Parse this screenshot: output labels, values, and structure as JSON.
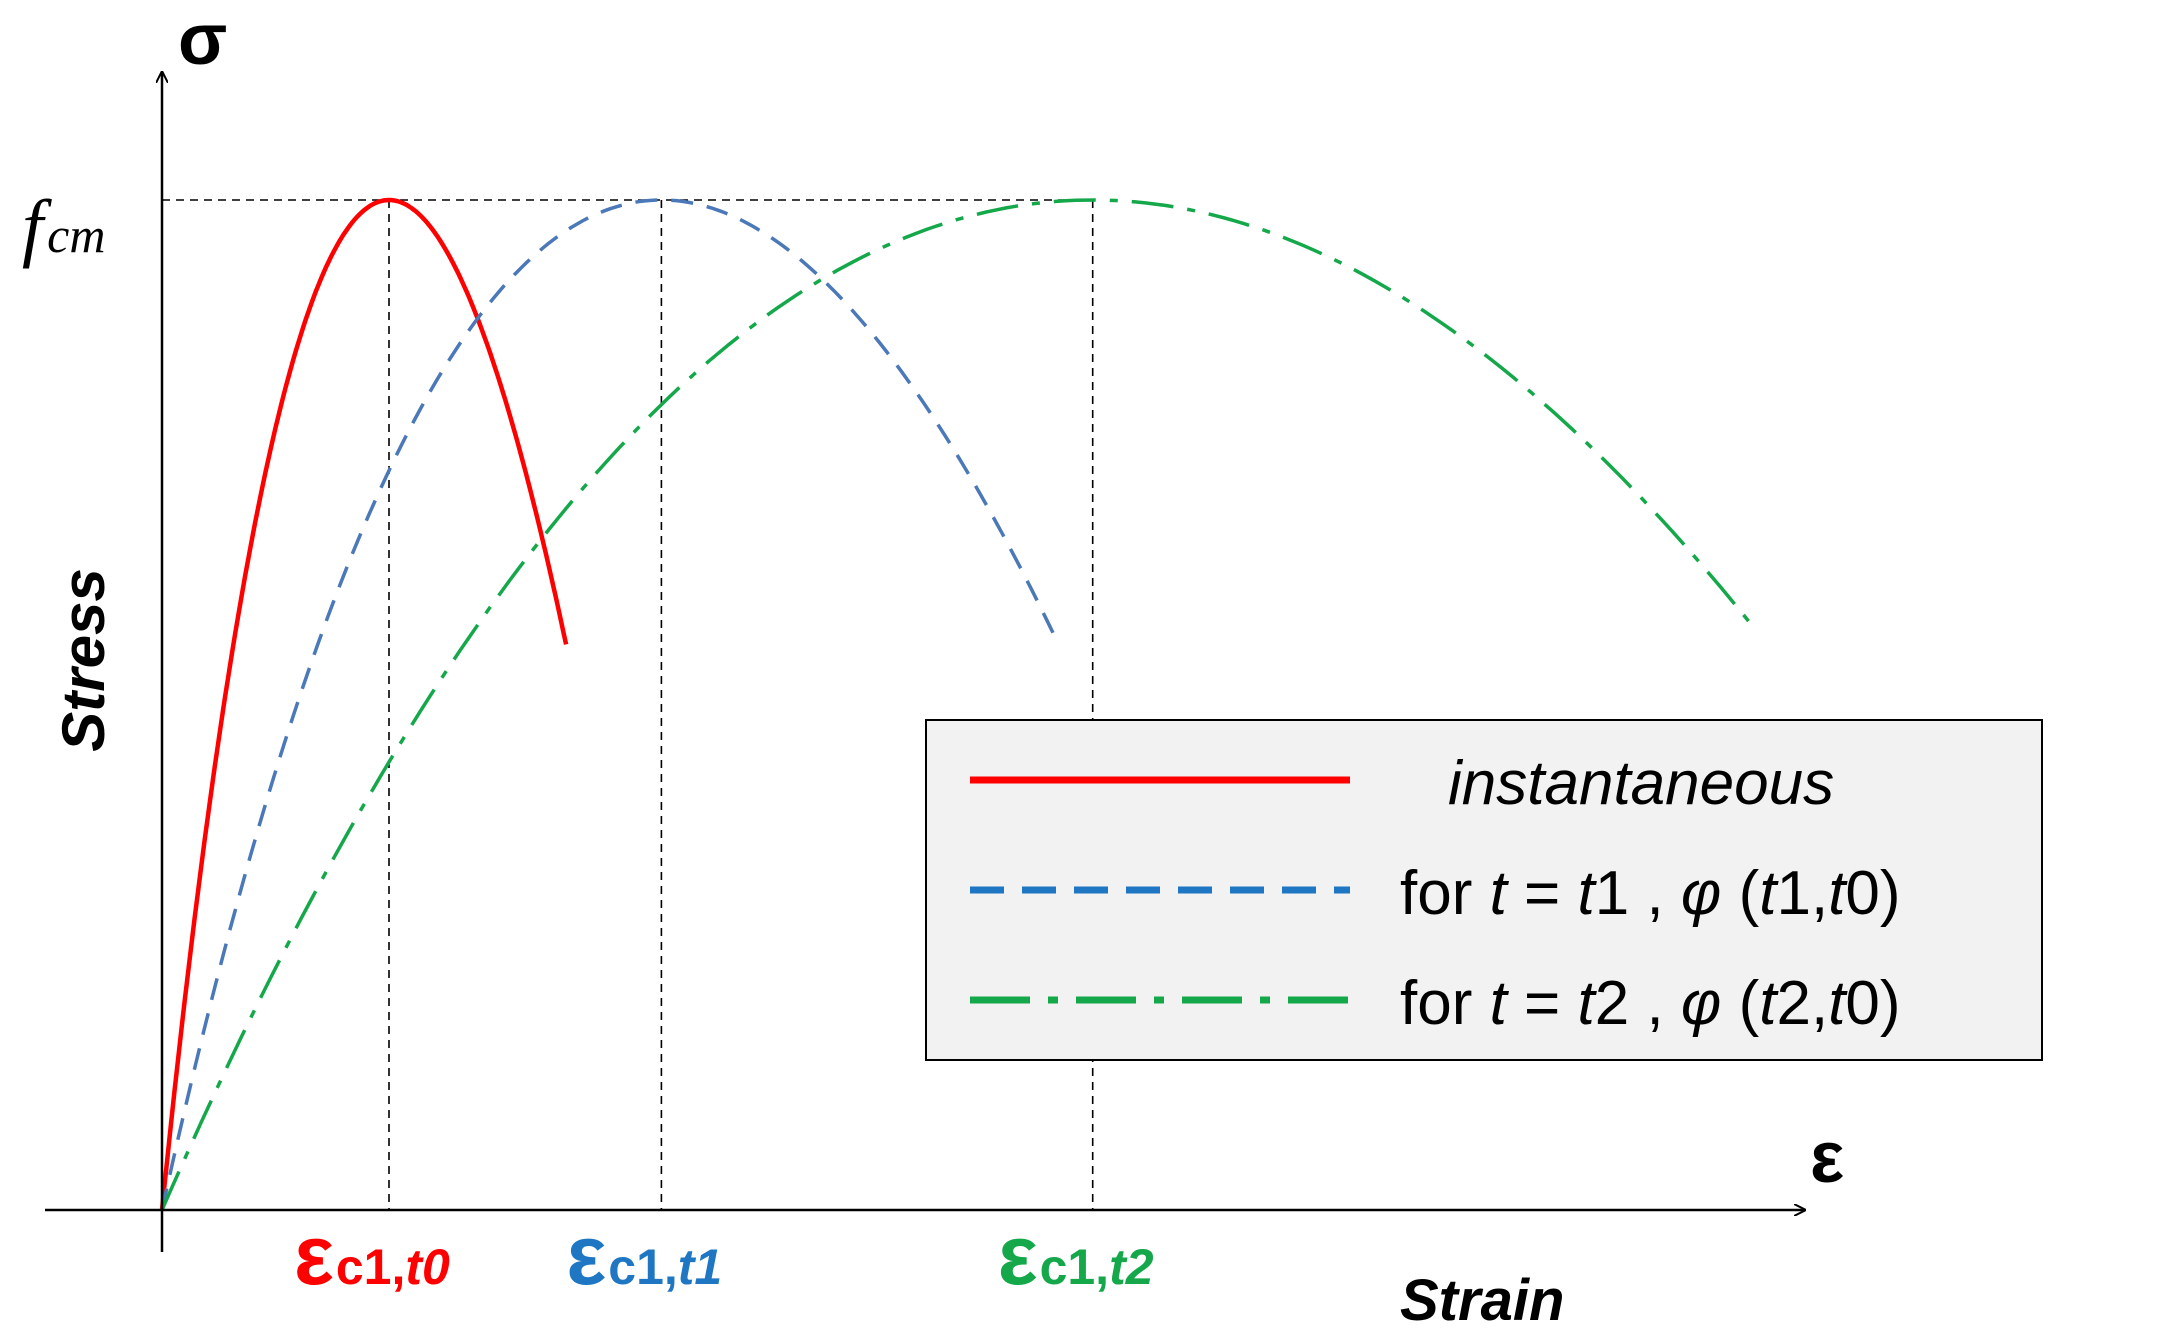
{
  "axes": {
    "y_symbol": "σ",
    "x_symbol": "ε",
    "y_label": "Stress",
    "x_label": "Strain",
    "peak_label_main": "f",
    "peak_label_sub": "cm"
  },
  "strain_labels": [
    {
      "main": "ε",
      "sub": "c1,",
      "sub_italic": "t0",
      "color": "#ff0000"
    },
    {
      "main": "ε",
      "sub": "c1,",
      "sub_italic": "t1",
      "color": "#1f77c4"
    },
    {
      "main": "ε",
      "sub": "c1,",
      "sub_italic": "t2",
      "color": "#14a84a"
    }
  ],
  "legend": {
    "items": [
      {
        "key": "instantaneous",
        "parts": [
          {
            "t": "instantaneous",
            "i": true
          }
        ],
        "color": "#ff0000",
        "style": "solid"
      },
      {
        "key": "t1",
        "parts": [
          {
            "t": "for ",
            "i": false
          },
          {
            "t": "t",
            "i": true
          },
          {
            "t": " = ",
            "i": false
          },
          {
            "t": "t",
            "i": true
          },
          {
            "t": "1 , ",
            "i": false
          },
          {
            "t": "φ",
            "i": true
          },
          {
            "t": " (",
            "i": false
          },
          {
            "t": "t",
            "i": true
          },
          {
            "t": "1,",
            "i": false
          },
          {
            "t": "t",
            "i": true
          },
          {
            "t": "0)",
            "i": false
          }
        ],
        "color": "#1f77c4",
        "style": "dashed"
      },
      {
        "key": "t2",
        "parts": [
          {
            "t": "for ",
            "i": false
          },
          {
            "t": "t",
            "i": true
          },
          {
            "t": " = ",
            "i": false
          },
          {
            "t": "t",
            "i": true
          },
          {
            "t": "2 , ",
            "i": false
          },
          {
            "t": "φ",
            "i": true
          },
          {
            "t": " (",
            "i": false
          },
          {
            "t": "t",
            "i": true
          },
          {
            "t": "2,",
            "i": false
          },
          {
            "t": "t",
            "i": true
          },
          {
            "t": "0)",
            "i": false
          }
        ],
        "color": "#14a84a",
        "style": "dashdot"
      }
    ]
  },
  "curves": [
    {
      "name": "instantaneous",
      "color": "#ff0000",
      "style": "solid",
      "peak_strain": 1.0,
      "end_strain": 1.78,
      "end_stress": 0.56
    },
    {
      "name": "t1",
      "color": "#4a78b8",
      "style": "dashed",
      "peak_strain": 2.2,
      "end_strain": 3.95,
      "end_stress": 0.56
    },
    {
      "name": "t2",
      "color": "#14a84a",
      "style": "dashdot",
      "peak_strain": 4.1,
      "end_strain": 7.0,
      "end_stress": 0.58
    }
  ]
}
